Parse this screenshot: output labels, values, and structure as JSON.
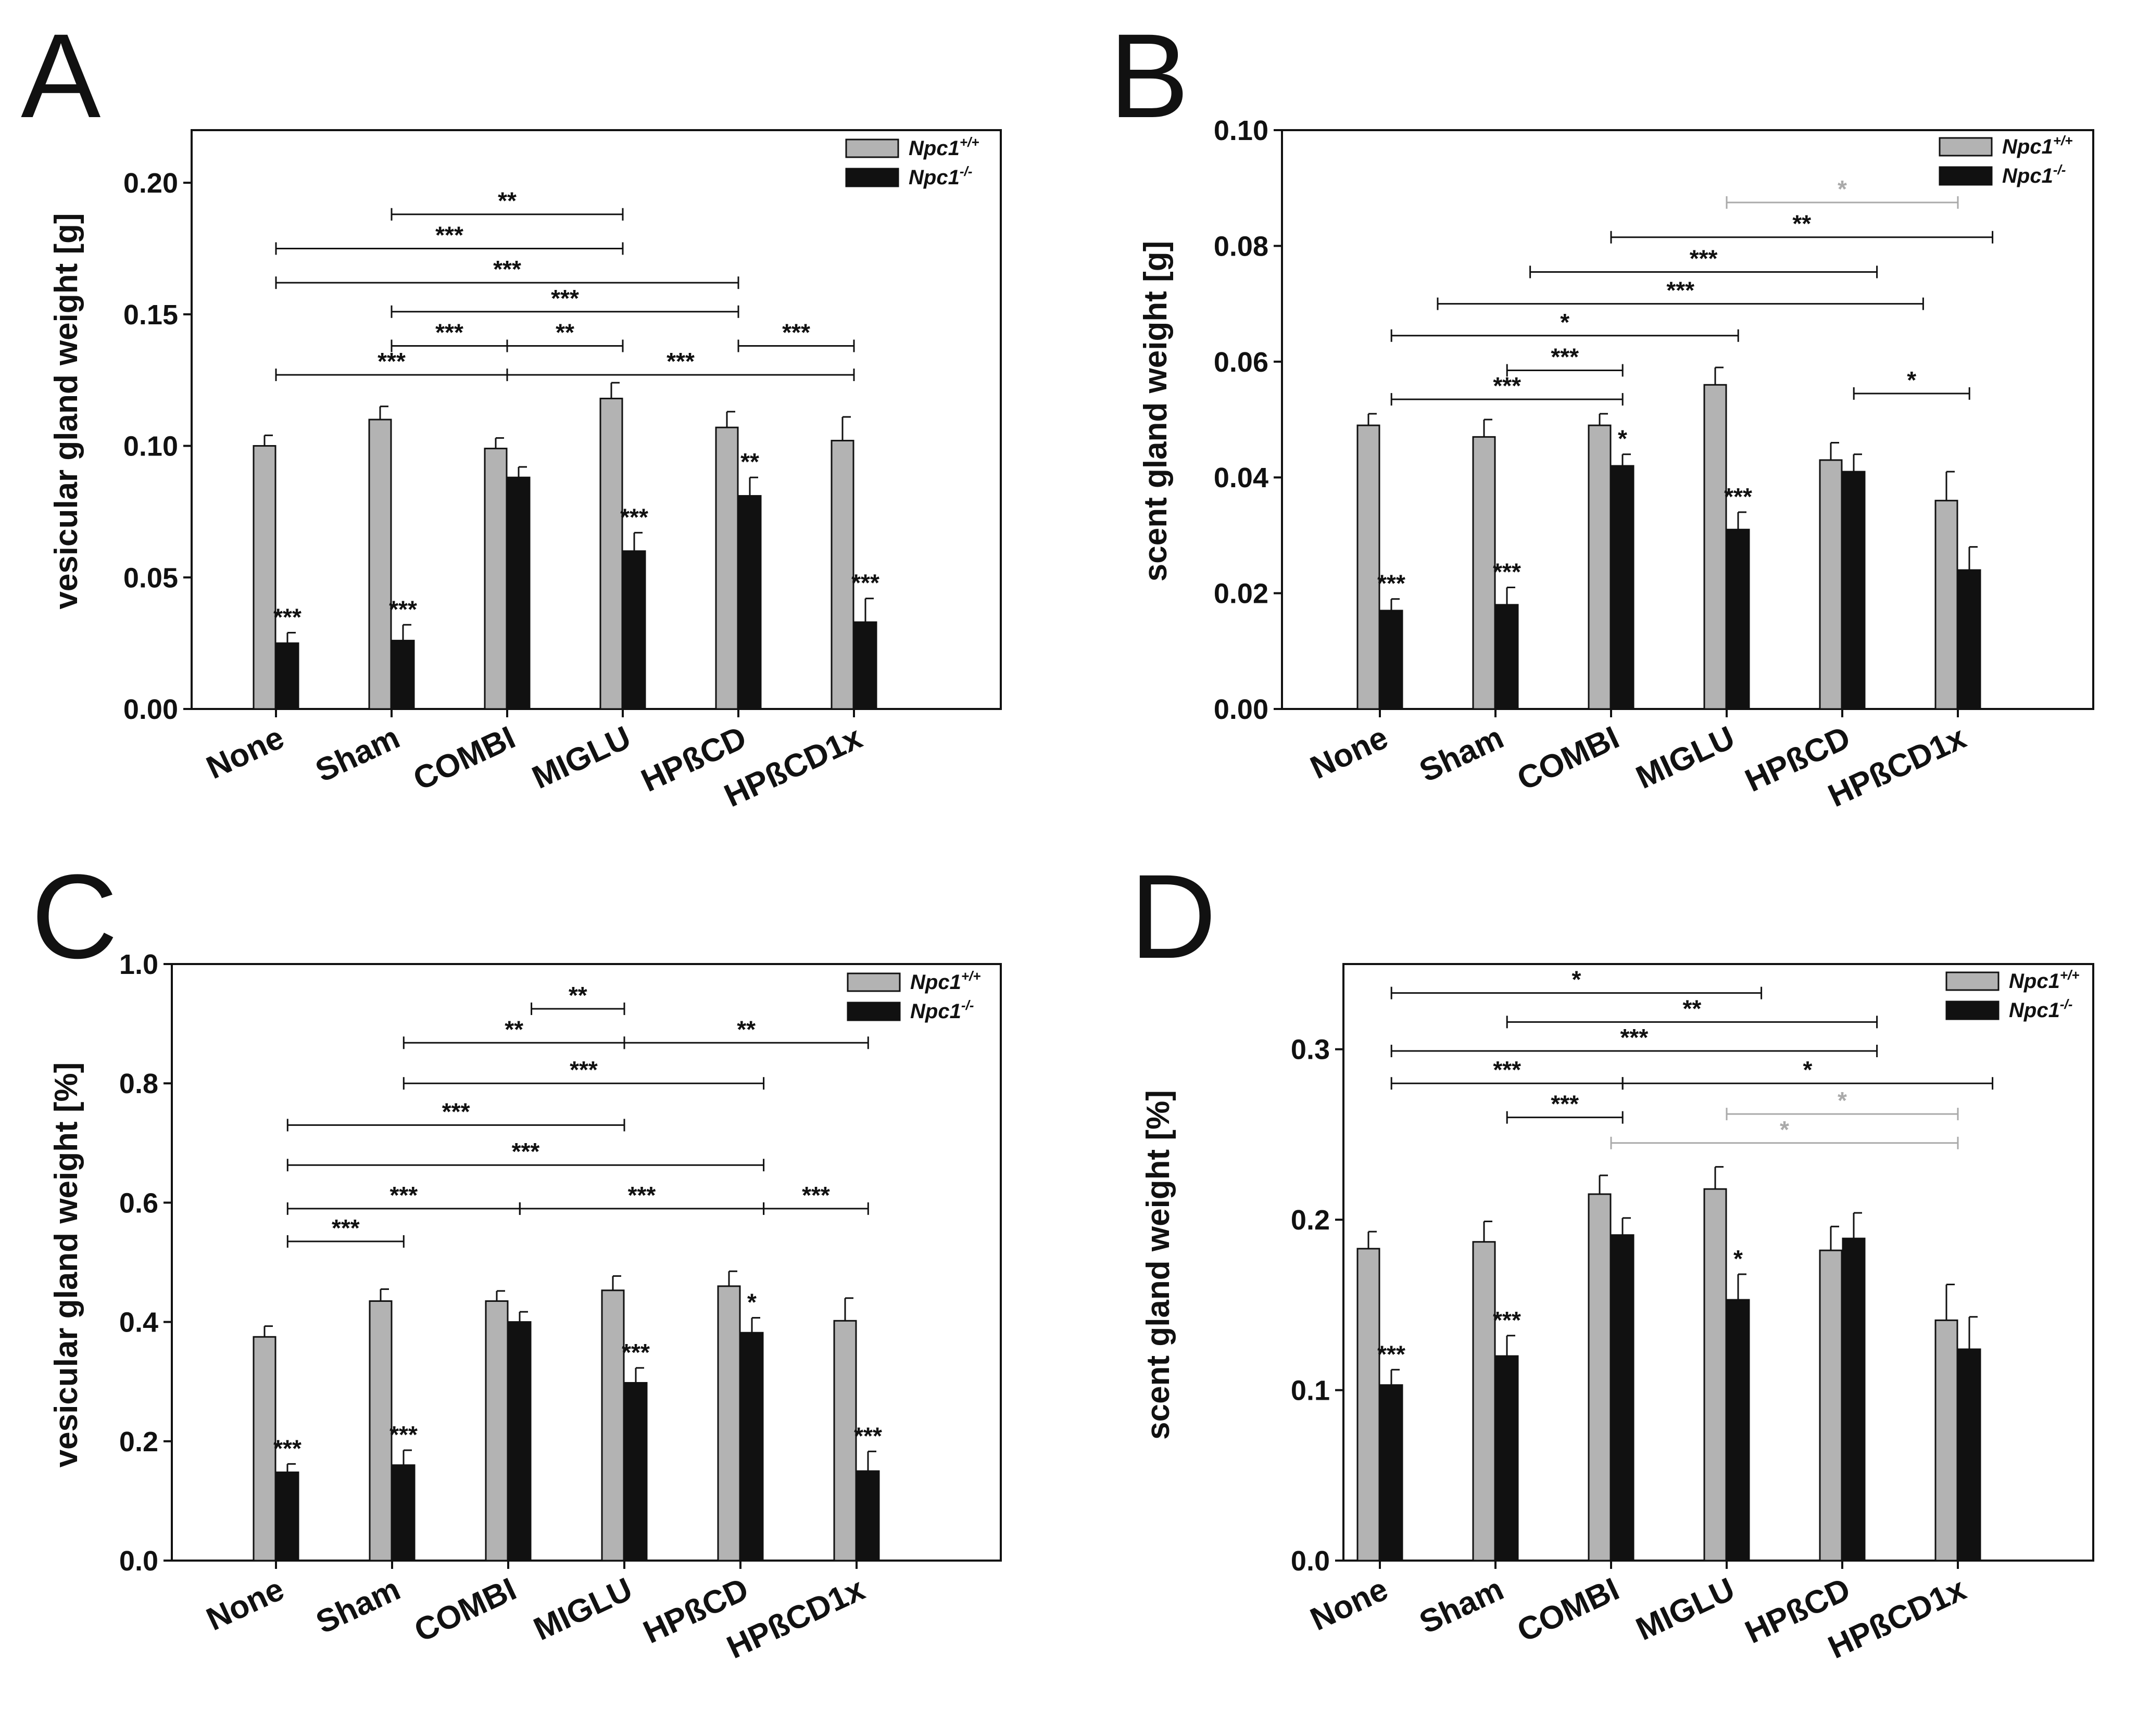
{
  "colors": {
    "wt": "#b3b3b3",
    "ko": "#111111",
    "sig_dark": "#111111",
    "sig_grey": "#aaaaaa"
  },
  "legend": [
    {
      "name": "Npc1",
      "sup": "+/+",
      "color": "#b3b3b3"
    },
    {
      "name": "Npc1",
      "sup": "-/-",
      "color": "#111111"
    }
  ],
  "chart_data": [
    {
      "panel": "A",
      "type": "bar",
      "ylabel": "vesicular gland weight [g]",
      "ylim": [
        0,
        0.22
      ],
      "yticks": [
        0.0,
        0.05,
        0.1,
        0.15,
        0.2
      ],
      "yticklabels": [
        "0.00",
        "0.05",
        "0.10",
        "0.15",
        "0.20"
      ],
      "categories": [
        "None",
        "Sham",
        "COMBI",
        "MIGLU",
        "HPßCD",
        "HPßCD1x"
      ],
      "series": [
        {
          "name": "Npc1+/+",
          "values": [
            0.1,
            0.11,
            0.099,
            0.118,
            0.107,
            0.102
          ],
          "errors": [
            0.004,
            0.005,
            0.004,
            0.006,
            0.006,
            0.009
          ]
        },
        {
          "name": "Npc1-/-",
          "values": [
            0.025,
            0.026,
            0.088,
            0.06,
            0.081,
            0.033
          ],
          "errors": [
            0.004,
            0.006,
            0.004,
            0.007,
            0.007,
            0.009
          ]
        }
      ],
      "bar_labels": [
        [
          "",
          "",
          "",
          "",
          "",
          ""
        ],
        [
          "***",
          "***",
          "",
          "***",
          "**",
          "***"
        ]
      ],
      "brackets": [
        {
          "x1": 1.0,
          "x2": 3.0,
          "y": 0.188,
          "label": "**",
          "grey": false
        },
        {
          "x1": 0.0,
          "x2": 3.0,
          "y": 0.175,
          "label": "***",
          "grey": false
        },
        {
          "x1": 0.0,
          "x2": 4.0,
          "y": 0.162,
          "label": "***",
          "grey": false
        },
        {
          "x1": 1.0,
          "x2": 4.0,
          "y": 0.151,
          "label": "***",
          "grey": false
        },
        {
          "x1": 1.0,
          "x2": 2.0,
          "y": 0.138,
          "label": "***",
          "grey": false
        },
        {
          "x1": 2.0,
          "x2": 3.0,
          "y": 0.138,
          "label": "**",
          "grey": false
        },
        {
          "x1": 4.0,
          "x2": 5.0,
          "y": 0.138,
          "label": "***",
          "grey": false
        },
        {
          "x1": 0.0,
          "x2": 2.0,
          "y": 0.127,
          "label": "***",
          "grey": false
        },
        {
          "x1": 2.0,
          "x2": 5.0,
          "y": 0.127,
          "label": "***",
          "grey": false
        }
      ]
    },
    {
      "panel": "B",
      "type": "bar",
      "ylabel": "scent gland weight [g]",
      "ylim": [
        0,
        0.1
      ],
      "yticks": [
        0.0,
        0.02,
        0.04,
        0.06,
        0.08,
        0.1
      ],
      "yticklabels": [
        "0.00",
        "0.02",
        "0.04",
        "0.06",
        "0.08",
        "0.10"
      ],
      "categories": [
        "None",
        "Sham",
        "COMBI",
        "MIGLU",
        "HPßCD",
        "HPßCD1x"
      ],
      "series": [
        {
          "name": "Npc1+/+",
          "values": [
            0.049,
            0.047,
            0.049,
            0.056,
            0.043,
            0.036
          ],
          "errors": [
            0.002,
            0.003,
            0.002,
            0.003,
            0.003,
            0.005
          ]
        },
        {
          "name": "Npc1-/-",
          "values": [
            0.017,
            0.018,
            0.042,
            0.031,
            0.041,
            0.024
          ],
          "errors": [
            0.002,
            0.003,
            0.002,
            0.003,
            0.003,
            0.004
          ]
        }
      ],
      "bar_labels": [
        [
          "",
          "",
          "",
          "",
          "",
          ""
        ],
        [
          "***",
          "***",
          "*",
          "***",
          "",
          ""
        ]
      ],
      "brackets": [
        {
          "x1": 3.0,
          "x2": 5.0,
          "y": 0.0875,
          "label": "*",
          "grey": true
        },
        {
          "x1": 2.0,
          "x2": 5.3,
          "y": 0.0815,
          "label": "**",
          "grey": false
        },
        {
          "x1": 1.3,
          "x2": 4.3,
          "y": 0.0755,
          "label": "***",
          "grey": false
        },
        {
          "x1": 0.5,
          "x2": 4.7,
          "y": 0.07,
          "label": "***",
          "grey": false
        },
        {
          "x1": 0.1,
          "x2": 3.1,
          "y": 0.0645,
          "label": "*",
          "grey": false
        },
        {
          "x1": 1.1,
          "x2": 2.1,
          "y": 0.0585,
          "label": "***",
          "grey": false
        },
        {
          "x1": 0.1,
          "x2": 2.1,
          "y": 0.0535,
          "label": "***",
          "grey": false
        },
        {
          "x1": 4.1,
          "x2": 5.1,
          "y": 0.0545,
          "label": "*",
          "grey": false
        }
      ]
    },
    {
      "panel": "C",
      "type": "bar",
      "ylabel": "vesicular gland weight [%]",
      "ylim": [
        0,
        1.0
      ],
      "yticks": [
        0.0,
        0.2,
        0.4,
        0.6,
        0.8,
        1.0
      ],
      "yticklabels": [
        "0.0",
        "0.2",
        "0.4",
        "0.6",
        "0.8",
        "1.0"
      ],
      "categories": [
        "None",
        "Sham",
        "COMBI",
        "MIGLU",
        "HPßCD",
        "HPßCD1x"
      ],
      "series": [
        {
          "name": "Npc1+/+",
          "values": [
            0.375,
            0.435,
            0.435,
            0.453,
            0.46,
            0.402
          ],
          "errors": [
            0.018,
            0.02,
            0.017,
            0.024,
            0.025,
            0.038
          ]
        },
        {
          "name": "Npc1-/-",
          "values": [
            0.148,
            0.16,
            0.4,
            0.298,
            0.382,
            0.15
          ],
          "errors": [
            0.014,
            0.025,
            0.017,
            0.025,
            0.025,
            0.033
          ]
        }
      ],
      "bar_labels": [
        [
          "",
          "",
          "",
          "",
          "",
          ""
        ],
        [
          "***",
          "***",
          "",
          "***",
          "*",
          "***"
        ]
      ],
      "brackets": [
        {
          "x1": 2.2,
          "x2": 3.0,
          "y": 0.925,
          "label": "**",
          "grey": false
        },
        {
          "x1": 1.1,
          "x2": 3.0,
          "y": 0.868,
          "label": "**",
          "grey": false
        },
        {
          "x1": 3.0,
          "x2": 5.1,
          "y": 0.868,
          "label": "**",
          "grey": false
        },
        {
          "x1": 1.1,
          "x2": 4.2,
          "y": 0.8,
          "label": "***",
          "grey": false
        },
        {
          "x1": 0.1,
          "x2": 3.0,
          "y": 0.73,
          "label": "***",
          "grey": false
        },
        {
          "x1": 0.1,
          "x2": 4.2,
          "y": 0.663,
          "label": "***",
          "grey": false
        },
        {
          "x1": 0.1,
          "x2": 2.1,
          "y": 0.59,
          "label": "***",
          "grey": false
        },
        {
          "x1": 2.1,
          "x2": 4.2,
          "y": 0.59,
          "label": "***",
          "grey": false
        },
        {
          "x1": 4.2,
          "x2": 5.1,
          "y": 0.59,
          "label": "***",
          "grey": false
        },
        {
          "x1": 0.1,
          "x2": 1.1,
          "y": 0.535,
          "label": "***",
          "grey": false
        }
      ]
    },
    {
      "panel": "D",
      "type": "bar",
      "ylabel": "scent gland weight [%]",
      "ylim": [
        0,
        0.35
      ],
      "yticks": [
        0.0,
        0.1,
        0.2,
        0.3
      ],
      "yticklabels": [
        "0.0",
        "0.1",
        "0.2",
        "0.3"
      ],
      "categories": [
        "None",
        "Sham",
        "COMBI",
        "MIGLU",
        "HPßCD",
        "HPßCD1x"
      ],
      "series": [
        {
          "name": "Npc1+/+",
          "values": [
            0.183,
            0.187,
            0.215,
            0.218,
            0.182,
            0.141
          ],
          "errors": [
            0.01,
            0.012,
            0.011,
            0.013,
            0.014,
            0.021
          ]
        },
        {
          "name": "Npc1-/-",
          "values": [
            0.103,
            0.12,
            0.191,
            0.153,
            0.189,
            0.124
          ],
          "errors": [
            0.009,
            0.012,
            0.01,
            0.015,
            0.015,
            0.019
          ]
        }
      ],
      "bar_labels": [
        [
          "",
          "",
          "",
          "",
          "",
          ""
        ],
        [
          "***",
          "***",
          "",
          "*",
          "",
          ""
        ]
      ],
      "brackets": [
        {
          "x1": 0.1,
          "x2": 3.3,
          "y": 0.333,
          "label": "*",
          "grey": false
        },
        {
          "x1": 1.1,
          "x2": 4.3,
          "y": 0.316,
          "label": "**",
          "grey": false
        },
        {
          "x1": 0.1,
          "x2": 4.3,
          "y": 0.299,
          "label": "***",
          "grey": false
        },
        {
          "x1": 0.1,
          "x2": 2.1,
          "y": 0.28,
          "label": "***",
          "grey": false
        },
        {
          "x1": 2.1,
          "x2": 5.3,
          "y": 0.28,
          "label": "*",
          "grey": false
        },
        {
          "x1": 1.1,
          "x2": 2.1,
          "y": 0.26,
          "label": "***",
          "grey": false
        },
        {
          "x1": 3.0,
          "x2": 5.0,
          "y": 0.262,
          "label": "*",
          "grey": true
        },
        {
          "x1": 2.0,
          "x2": 5.0,
          "y": 0.245,
          "label": "*",
          "grey": true
        }
      ]
    }
  ]
}
